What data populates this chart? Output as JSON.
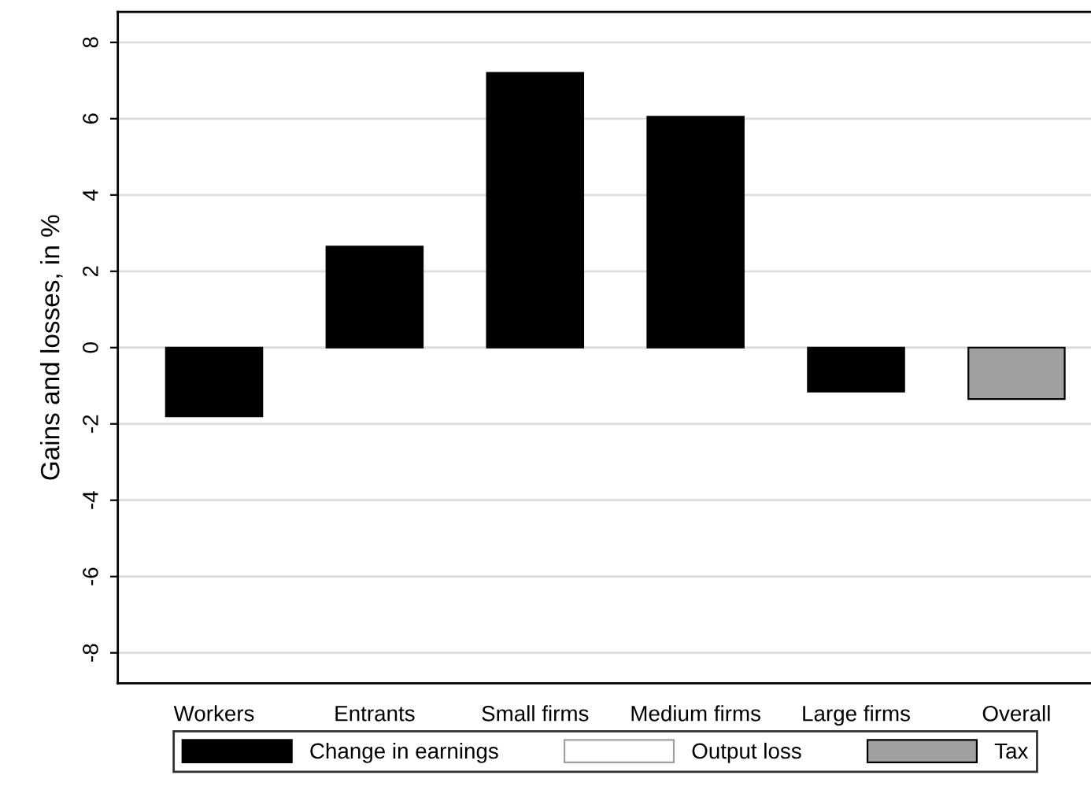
{
  "chart_data": {
    "type": "bar",
    "ylabel": "Gains and losses, in %",
    "categories": [
      "Workers",
      "Entrants",
      "Small firms",
      "Medium firms",
      "Large firms",
      "Overall"
    ],
    "series": [
      {
        "name": "Change in earnings",
        "color": "#000000",
        "values": [
          -1.8,
          2.65,
          7.2,
          6.05,
          -1.15,
          null
        ]
      },
      {
        "name": "Output loss",
        "color": "#ffffff",
        "values": [
          null,
          null,
          null,
          null,
          null,
          null
        ]
      },
      {
        "name": "Tax",
        "color": "#a0a0a0",
        "values": [
          null,
          null,
          null,
          null,
          null,
          -1.35
        ]
      }
    ],
    "ylim": [
      -8.8,
      8.8
    ],
    "yticks": [
      -8,
      -6,
      -4,
      -2,
      0,
      2,
      4,
      6,
      8
    ],
    "grid": "y",
    "legend": "bottom"
  }
}
